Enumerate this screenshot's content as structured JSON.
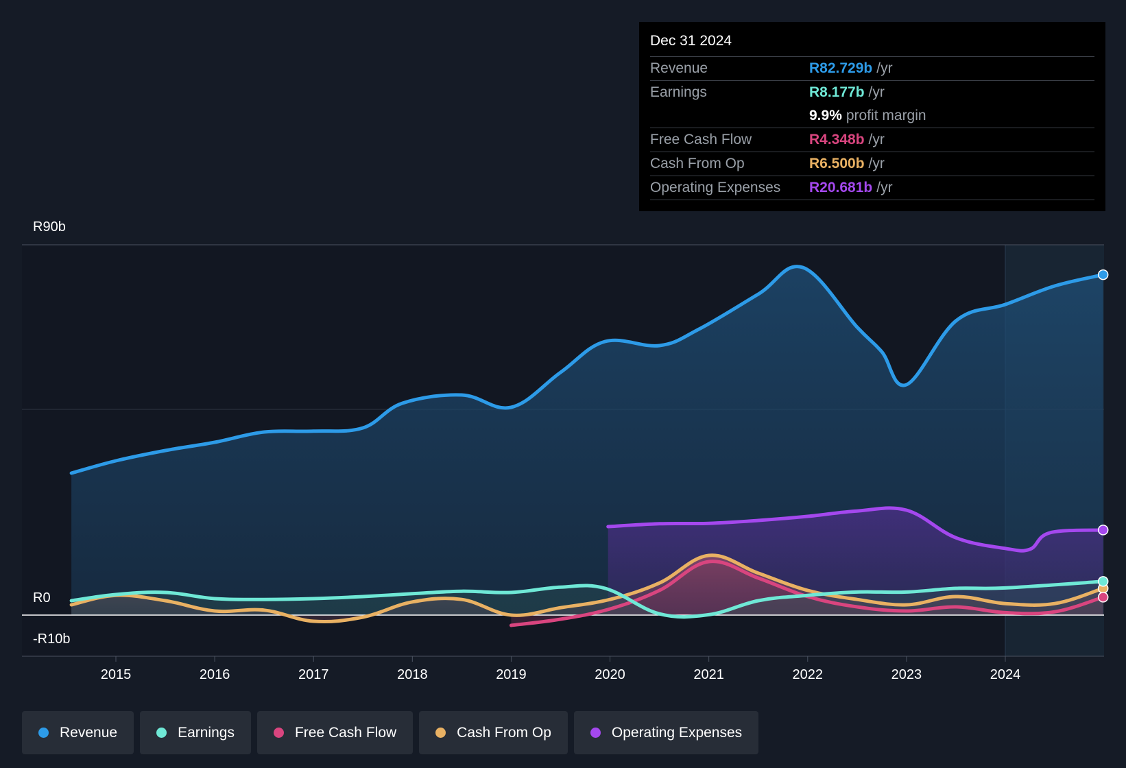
{
  "colors": {
    "revenue": "#2d9be8",
    "earnings": "#6fe8d6",
    "fcf": "#d9457f",
    "cfo": "#e9b163",
    "opex": "#a448ee"
  },
  "tooltip": {
    "date": "Dec 31 2024",
    "rows": [
      {
        "label": "Revenue",
        "value": "R82.729b",
        "unit": "/yr"
      },
      {
        "label": "Earnings",
        "value": "R8.177b",
        "unit": "/yr"
      },
      {
        "label": "",
        "value": "9.9%",
        "unit": "profit margin"
      },
      {
        "label": "Free Cash Flow",
        "value": "R4.348b",
        "unit": "/yr"
      },
      {
        "label": "Cash From Op",
        "value": "R6.500b",
        "unit": "/yr"
      },
      {
        "label": "Operating Expenses",
        "value": "R20.681b",
        "unit": "/yr"
      }
    ]
  },
  "legend": [
    "Revenue",
    "Earnings",
    "Free Cash Flow",
    "Cash From Op",
    "Operating Expenses"
  ],
  "chart_data": {
    "type": "area",
    "y_labels": {
      "top": "R90b",
      "zero": "R0",
      "bottom": "-R10b"
    },
    "ylim": [
      -10,
      90
    ],
    "xlim": [
      2014.55,
      2024.99
    ],
    "x_ticks": [
      "2015",
      "2016",
      "2017",
      "2018",
      "2019",
      "2020",
      "2021",
      "2022",
      "2023",
      "2024"
    ],
    "forecast_start": 2024.0,
    "series": [
      {
        "name": "Revenue",
        "color_key": "revenue",
        "points": [
          [
            2014.55,
            34.5
          ],
          [
            2015,
            37.5
          ],
          [
            2015.5,
            40.0
          ],
          [
            2016,
            42.0
          ],
          [
            2016.5,
            44.5
          ],
          [
            2017,
            44.7
          ],
          [
            2017.5,
            45.5
          ],
          [
            2017.9,
            51.5
          ],
          [
            2018.5,
            53.5
          ],
          [
            2019,
            50.5
          ],
          [
            2019.5,
            59.0
          ],
          [
            2019.95,
            66.5
          ],
          [
            2020.5,
            65.5
          ],
          [
            2020.9,
            69.5
          ],
          [
            2021.5,
            78.0
          ],
          [
            2021.95,
            84.5
          ],
          [
            2022.5,
            70.0
          ],
          [
            2022.75,
            64.0
          ],
          [
            2023,
            56.0
          ],
          [
            2023.5,
            71.5
          ],
          [
            2024,
            75.5
          ],
          [
            2024.5,
            80.0
          ],
          [
            2024.99,
            82.729
          ]
        ]
      },
      {
        "name": "Earnings",
        "color_key": "earnings",
        "points": [
          [
            2014.55,
            3.5
          ],
          [
            2015,
            5.0
          ],
          [
            2015.5,
            5.5
          ],
          [
            2016,
            4.0
          ],
          [
            2016.5,
            3.8
          ],
          [
            2017,
            4.0
          ],
          [
            2017.5,
            4.5
          ],
          [
            2018,
            5.2
          ],
          [
            2018.5,
            5.8
          ],
          [
            2019,
            5.5
          ],
          [
            2019.5,
            6.8
          ],
          [
            2019.95,
            6.5
          ],
          [
            2020.5,
            0.3
          ],
          [
            2021,
            0.1
          ],
          [
            2021.5,
            3.5
          ],
          [
            2022,
            4.8
          ],
          [
            2022.5,
            5.6
          ],
          [
            2023,
            5.6
          ],
          [
            2023.5,
            6.5
          ],
          [
            2024,
            6.6
          ],
          [
            2024.99,
            8.177
          ]
        ]
      },
      {
        "name": "Free Cash Flow",
        "color_key": "fcf",
        "points": [
          [
            2019,
            -2.5
          ],
          [
            2019.5,
            -1.0
          ],
          [
            2020,
            1.5
          ],
          [
            2020.5,
            6.0
          ],
          [
            2021,
            13.0
          ],
          [
            2021.5,
            9.0
          ],
          [
            2022,
            4.5
          ],
          [
            2022.5,
            2.0
          ],
          [
            2023,
            1.0
          ],
          [
            2023.5,
            2.0
          ],
          [
            2024,
            0.6
          ],
          [
            2024.5,
            0.8
          ],
          [
            2024.99,
            4.348
          ]
        ]
      },
      {
        "name": "Cash From Op",
        "color_key": "cfo",
        "points": [
          [
            2014.55,
            2.5
          ],
          [
            2015,
            4.8
          ],
          [
            2015.5,
            3.5
          ],
          [
            2016,
            1.0
          ],
          [
            2016.5,
            1.2
          ],
          [
            2017,
            -1.5
          ],
          [
            2017.5,
            -0.5
          ],
          [
            2018,
            3.2
          ],
          [
            2018.5,
            3.8
          ],
          [
            2019,
            0.0
          ],
          [
            2019.5,
            1.8
          ],
          [
            2020,
            3.8
          ],
          [
            2020.5,
            7.8
          ],
          [
            2021,
            14.5
          ],
          [
            2021.5,
            10.2
          ],
          [
            2022,
            6.0
          ],
          [
            2022.5,
            3.8
          ],
          [
            2023,
            2.5
          ],
          [
            2023.5,
            4.5
          ],
          [
            2024,
            2.8
          ],
          [
            2024.5,
            2.8
          ],
          [
            2024.99,
            6.5
          ]
        ]
      },
      {
        "name": "Operating Expenses",
        "color_key": "opex",
        "points": [
          [
            2019.98,
            21.5
          ],
          [
            2020.5,
            22.2
          ],
          [
            2021,
            22.3
          ],
          [
            2021.5,
            23.0
          ],
          [
            2022,
            24.0
          ],
          [
            2022.5,
            25.3
          ],
          [
            2023,
            25.5
          ],
          [
            2023.5,
            18.8
          ],
          [
            2024,
            16.2
          ],
          [
            2024.25,
            16.0
          ],
          [
            2024.45,
            20.0
          ],
          [
            2024.99,
            20.681
          ]
        ]
      }
    ]
  }
}
